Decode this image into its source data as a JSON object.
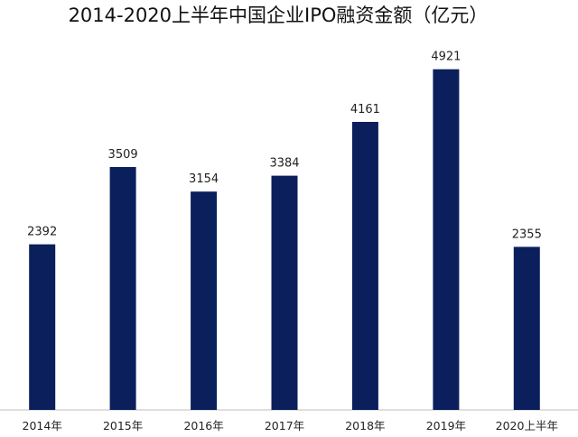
{
  "chart_data": {
    "type": "bar",
    "title": "2014-2020上半年中国企业IPO融资金额（亿元）",
    "categories": [
      "2014年",
      "2015年",
      "2016年",
      "2017年",
      "2018年",
      "2019年",
      "2020上半年"
    ],
    "values": [
      2392,
      3509,
      3154,
      3384,
      4161,
      4921,
      2355
    ],
    "ylim": [
      0,
      5400
    ],
    "grid": false,
    "legend": "none",
    "bar_color": "#0b1f5c",
    "axis_color": "#bfbfbf"
  }
}
